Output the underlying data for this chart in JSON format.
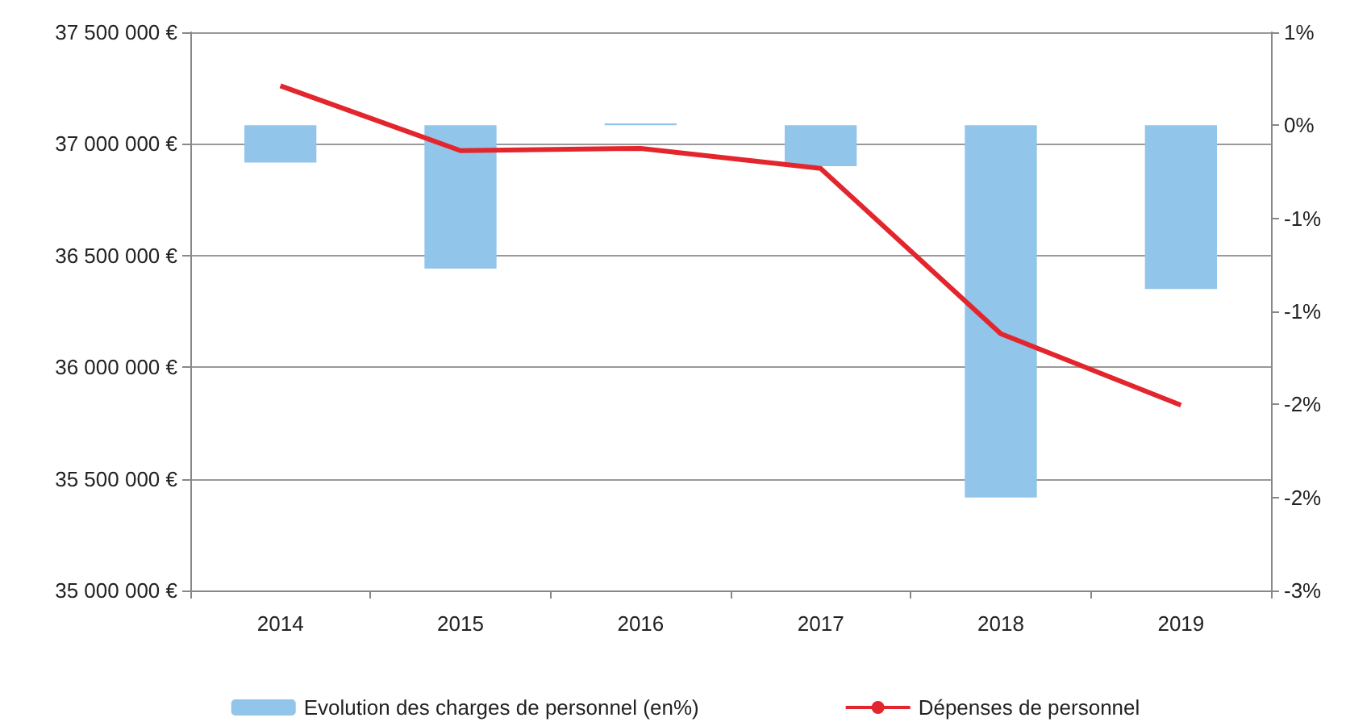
{
  "chart_data": {
    "type": "bar",
    "categories": [
      "2014",
      "2015",
      "2016",
      "2017",
      "2018",
      "2019"
    ],
    "series": [
      {
        "name": "Evolution des charges de personnel (en%)",
        "axis": "y2",
        "color": "#92c5ea",
        "values": [
          -0.2,
          -0.77,
          0.01,
          -0.22,
          -2.0,
          -0.88
        ]
      },
      {
        "name": "Dépenses de personnel",
        "type": "line",
        "color": "#e3262d",
        "values": [
          37260000,
          36970000,
          36980000,
          36890000,
          36150000,
          35830000
        ]
      }
    ],
    "ylim": [
      35000000,
      37500000
    ],
    "yticks": [
      {
        "value": 35000000,
        "label": "35 000 000 €"
      },
      {
        "value": 35500000,
        "label": "35 500 000 €"
      },
      {
        "value": 36000000,
        "label": "36 000 000 €"
      },
      {
        "value": 36500000,
        "label": "36 500 000 €"
      },
      {
        "value": 37000000,
        "label": "37 000 000 €"
      },
      {
        "value": 37500000,
        "label": "37 500 000 €"
      }
    ],
    "y2lim": [
      -2.5,
      0.5
    ],
    "y2ticks": [
      {
        "value": -2.5,
        "label": "-3%"
      },
      {
        "value": -2,
        "label": "-2%"
      },
      {
        "value": -1.5,
        "label": "-2%"
      },
      {
        "value": -1,
        "label": "-1%"
      },
      {
        "value": -0.5,
        "label": "-1%"
      },
      {
        "value": 0,
        "label": "0%"
      },
      {
        "value": 0.5,
        "label": "1%"
      }
    ],
    "grid": "y",
    "legend": "bottom",
    "marker": "none",
    "line_style": "solid"
  }
}
